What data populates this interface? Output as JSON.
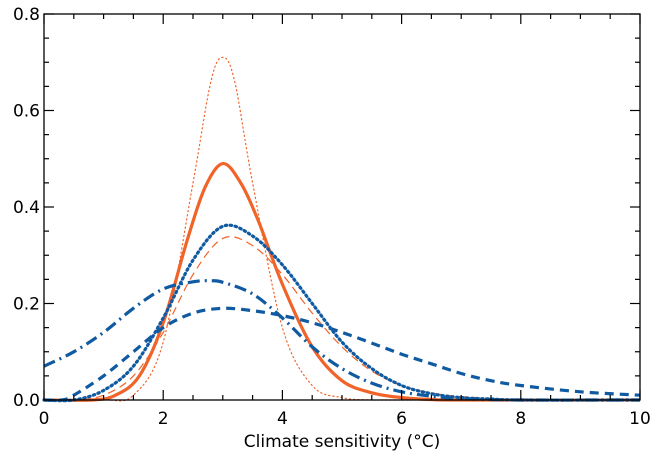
{
  "chart_data": {
    "type": "line",
    "title": "",
    "xlabel": "Climate sensitivity (°C)",
    "ylabel": "",
    "xlim": [
      0,
      10
    ],
    "ylim": [
      0,
      0.8
    ],
    "xticks": [
      0,
      2,
      4,
      6,
      8,
      10
    ],
    "yticks": [
      0.0,
      0.2,
      0.4,
      0.6,
      0.8
    ],
    "xtick_labels": [
      "0",
      "2",
      "4",
      "6",
      "8",
      "10"
    ],
    "ytick_labels": [
      "0.0",
      "0.2",
      "0.4",
      "0.6",
      "0.8"
    ],
    "grid": false,
    "legend": "none",
    "colors": {
      "orange": "#f0642a",
      "blue": "#0f5aa0"
    },
    "series": [
      {
        "color": "#f0642a",
        "style": "dotted",
        "weight": "thin",
        "x": [
          0,
          1.0,
          1.5,
          2.0,
          2.5,
          2.8,
          3.0,
          3.2,
          3.5,
          4.0,
          4.5,
          5.0,
          5.5,
          6.0,
          10
        ],
        "y": [
          0,
          0.0,
          0.01,
          0.12,
          0.45,
          0.66,
          0.71,
          0.66,
          0.45,
          0.15,
          0.03,
          0.005,
          0.0,
          0.0,
          0.0
        ]
      },
      {
        "color": "#f0642a",
        "style": "solid",
        "weight": "thick",
        "x": [
          0,
          0.8,
          1.2,
          1.6,
          2.0,
          2.4,
          2.7,
          3.0,
          3.3,
          3.6,
          4.0,
          4.5,
          5.0,
          5.5,
          6.0,
          6.5,
          7.0,
          10
        ],
        "y": [
          0,
          0.0,
          0.01,
          0.05,
          0.16,
          0.33,
          0.44,
          0.49,
          0.45,
          0.37,
          0.24,
          0.11,
          0.04,
          0.015,
          0.005,
          0.001,
          0.0,
          0.0
        ]
      },
      {
        "color": "#f0642a",
        "style": "dashed",
        "weight": "thin",
        "x": [
          0,
          0.5,
          1.0,
          1.5,
          2.0,
          2.5,
          3.0,
          3.5,
          4.0,
          4.5,
          5.0,
          5.5,
          6.0,
          6.5,
          7.0,
          8.0,
          10
        ],
        "y": [
          0,
          0.0,
          0.01,
          0.05,
          0.14,
          0.26,
          0.335,
          0.32,
          0.26,
          0.18,
          0.11,
          0.06,
          0.03,
          0.015,
          0.007,
          0.001,
          0.0
        ]
      },
      {
        "color": "#0f5aa0",
        "style": "dotted",
        "weight": "thick",
        "x": [
          0,
          0.5,
          1.0,
          1.5,
          2.0,
          2.5,
          3.0,
          3.5,
          4.0,
          4.5,
          5.0,
          5.5,
          6.0,
          6.5,
          7.0,
          7.5,
          8.0,
          10
        ],
        "y": [
          0,
          0.0,
          0.02,
          0.07,
          0.17,
          0.29,
          0.36,
          0.34,
          0.28,
          0.2,
          0.12,
          0.065,
          0.03,
          0.013,
          0.005,
          0.002,
          0.0,
          0.0
        ]
      },
      {
        "color": "#0f5aa0",
        "style": "dashdot",
        "weight": "thick",
        "x": [
          0,
          0.5,
          1.0,
          1.5,
          2.0,
          2.5,
          2.8,
          3.0,
          3.5,
          4.0,
          4.5,
          5.0,
          5.5,
          6.0,
          6.5,
          7.0,
          7.5,
          8.0,
          10
        ],
        "y": [
          0.07,
          0.1,
          0.14,
          0.19,
          0.23,
          0.245,
          0.247,
          0.244,
          0.22,
          0.17,
          0.11,
          0.065,
          0.035,
          0.017,
          0.008,
          0.003,
          0.001,
          0.0,
          0.0
        ]
      },
      {
        "color": "#0f5aa0",
        "style": "dashed",
        "weight": "thick",
        "x": [
          0,
          0.3,
          0.5,
          1.0,
          1.5,
          2.0,
          2.5,
          3.0,
          3.5,
          4.0,
          4.5,
          5.0,
          5.5,
          6.0,
          6.5,
          7.0,
          7.5,
          8.0,
          9.0,
          10
        ],
        "y": [
          0.0,
          0.0,
          0.01,
          0.05,
          0.1,
          0.15,
          0.18,
          0.19,
          0.185,
          0.175,
          0.16,
          0.14,
          0.118,
          0.095,
          0.075,
          0.055,
          0.04,
          0.03,
          0.017,
          0.01
        ]
      }
    ]
  }
}
